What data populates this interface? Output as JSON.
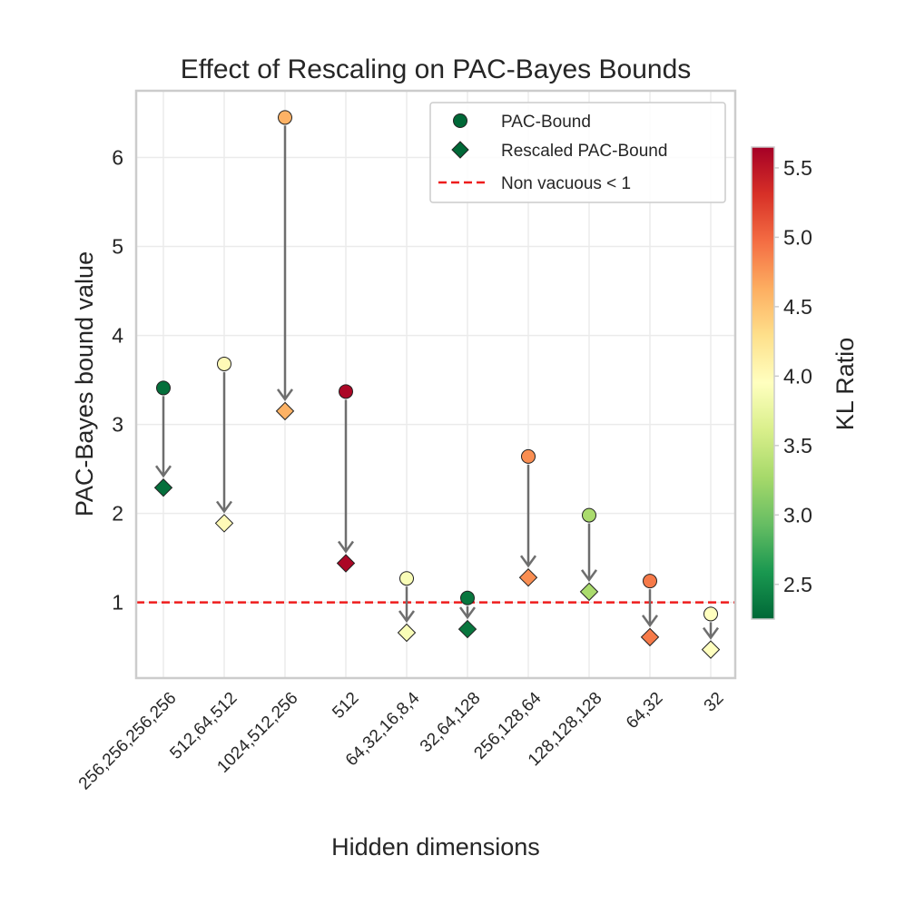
{
  "chart_data": {
    "type": "scatter",
    "title": "Effect of Rescaling on PAC-Bayes Bounds",
    "xlabel": "Hidden dimensions",
    "ylabel": "PAC-Bayes bound value",
    "ylim": [
      0.15,
      6.75
    ],
    "yticks": [
      "1",
      "2",
      "3",
      "4",
      "5",
      "6"
    ],
    "grid": true,
    "categories": [
      "256,256,256,256",
      "512,64,512",
      "1024,512,256",
      "512",
      "64,32,16,8,4",
      "32,64,128",
      "256,128,64",
      "128,128,128",
      "64,32",
      "32"
    ],
    "series": [
      {
        "name": "PAC-Bound",
        "marker": "circle",
        "values": [
          3.41,
          3.68,
          6.45,
          3.37,
          1.27,
          1.05,
          2.64,
          1.98,
          1.24,
          0.87
        ]
      },
      {
        "name": "Rescaled PAC-Bound",
        "marker": "diamond",
        "values": [
          2.29,
          1.89,
          3.15,
          1.44,
          0.66,
          0.7,
          1.28,
          1.12,
          0.61,
          0.47
        ]
      }
    ],
    "kl_ratio": [
      2.3,
      4.0,
      4.6,
      5.6,
      3.9,
      2.35,
      4.8,
      3.3,
      4.9,
      3.95
    ],
    "reference_line": {
      "label": "Non vacuous < 1",
      "value": 1,
      "color": "#ee1c1c"
    },
    "legend": {
      "placement": "top-right",
      "entries": [
        "PAC-Bound",
        "Rescaled PAC-Bound",
        "Non vacuous < 1"
      ]
    },
    "colorbar": {
      "label": "KL Ratio",
      "range": [
        2.25,
        5.65
      ],
      "ticks": [
        "2.5",
        "3.0",
        "3.5",
        "4.0",
        "4.5",
        "5.0",
        "5.5"
      ],
      "colormap": "RdYlGn_r"
    },
    "colors": {
      "arrow": "#6e6e6e",
      "grid": "#ebebeb",
      "frame": "#cccccc",
      "marker_edge": "#222222"
    }
  }
}
